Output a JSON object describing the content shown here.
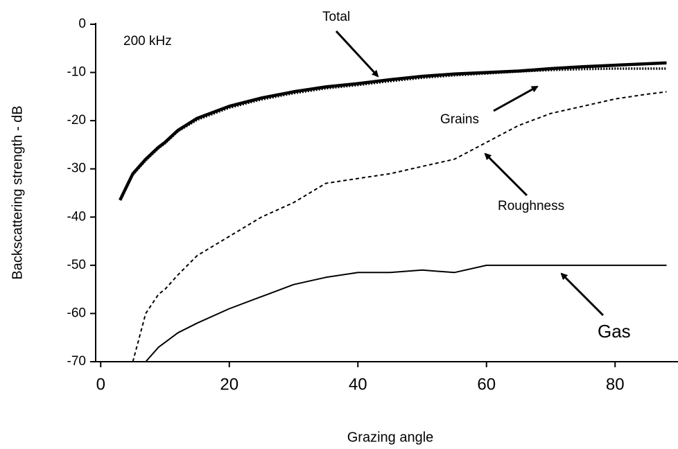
{
  "chart_data": {
    "type": "line",
    "x_label": "Grazing angle",
    "y_label": "Backscattering strength - dB",
    "annotation": "200 kHz",
    "x": [
      3,
      5,
      7,
      9,
      10,
      12,
      15,
      20,
      25,
      30,
      35,
      40,
      45,
      50,
      55,
      60,
      65,
      70,
      75,
      80,
      85,
      88
    ],
    "series": [
      {
        "name": "Total",
        "color": "#000000",
        "values": [
          -36.5,
          -31,
          -28,
          -25.5,
          -24.5,
          -22,
          -19.5,
          -17,
          -15.3,
          -14,
          -13,
          -12.3,
          -11.5,
          -10.8,
          -10.3,
          -10,
          -9.7,
          -9.2,
          -8.8,
          -8.5,
          -8.2,
          -8
        ]
      },
      {
        "name": "Grains",
        "color": "#000000",
        "values": [
          null,
          -31.2,
          -28.2,
          -25.7,
          -24.7,
          -22.2,
          -19.8,
          -17.3,
          -15.6,
          -14.3,
          -13.3,
          -12.6,
          -11.8,
          -11.1,
          -10.6,
          -10.2,
          -9.8,
          -9.5,
          -9.3,
          -9.2,
          -9.2,
          -9.2
        ]
      },
      {
        "name": "Roughness",
        "color": "#000000",
        "values": [
          null,
          -70,
          -60,
          -56,
          -55,
          -52,
          -48,
          -44,
          -40,
          -37,
          -33,
          -32,
          -31,
          -29.5,
          -28,
          -24.5,
          -21,
          -18.5,
          -17,
          -15.5,
          -14.5,
          -14
        ]
      },
      {
        "name": "Gas",
        "color": "#000000",
        "values": [
          null,
          null,
          -70,
          -67,
          -66,
          -64,
          -62,
          -59,
          -56.5,
          -54,
          -52.5,
          -51.5,
          -51.5,
          -51,
          -51.5,
          -50,
          -50,
          -50,
          -50,
          -50,
          -50,
          -50
        ]
      }
    ],
    "xlim": [
      -1,
      90
    ],
    "ylim": [
      -70,
      0
    ],
    "xticks": [
      0,
      20,
      40,
      60,
      80
    ],
    "yticks": [
      0,
      -10,
      -20,
      -30,
      -40,
      -50,
      -60,
      -70
    ]
  }
}
